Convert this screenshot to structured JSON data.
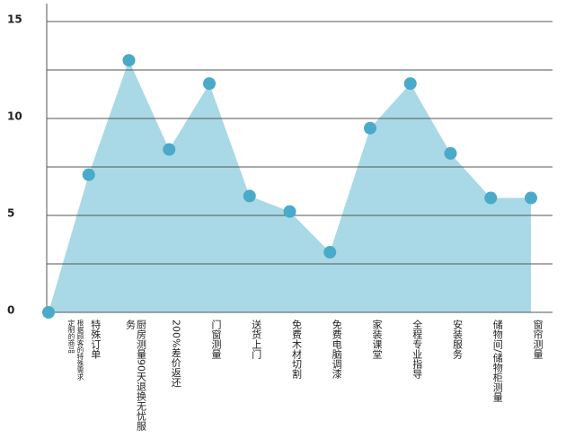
{
  "chart_data": {
    "type": "area",
    "categories": [
      "根据顾客的特殊需求\n定制的商品",
      "特殊订单",
      "厨房测量90天退换无忧服务",
      "200%差价返还",
      "门窗测量",
      "送货上门",
      "免费木材切割",
      "免费电脑调漆",
      "家装课堂",
      "全程专业指导",
      "安装服务",
      "储物间/储物柜测量",
      "窗帘测量"
    ],
    "values": [
      0,
      7.1,
      13.0,
      8.4,
      11.8,
      6.0,
      5.2,
      3.1,
      9.5,
      11.8,
      8.2,
      5.9,
      5.9
    ],
    "fill_color": "#a9d9e6",
    "marker_color": "#4aaac9",
    "ylim": [
      0,
      15
    ],
    "yticks": [
      0,
      5,
      10,
      15
    ],
    "minor_yticks": [
      2.5,
      7.5,
      12.5
    ],
    "grid": true
  }
}
